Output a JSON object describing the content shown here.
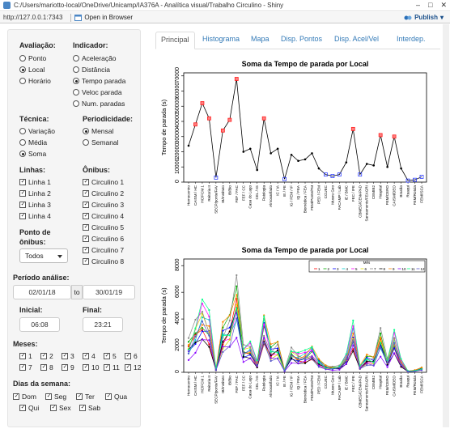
{
  "window": {
    "title": "C:/Users/mariotto-local/OneDrive/Unicamp/IA376A - Analítica visual/Trabalho Circulino - Shiny",
    "controls": [
      "–",
      "□",
      "✕"
    ]
  },
  "toolbar": {
    "url": "http://127.0.0.1:7343",
    "open_label": "Open in Browser",
    "publish_label": "Publish"
  },
  "sidebar": {
    "avaliacao": {
      "label": "Avaliação:",
      "options": [
        "Ponto",
        "Local",
        "Horário"
      ],
      "selected": 1
    },
    "indicador": {
      "label": "Indicador:",
      "options": [
        "Aceleração",
        "Distância",
        "Tempo parada",
        "Veloc parada",
        "Num. paradas"
      ],
      "selected": 2
    },
    "tecnica": {
      "label": "Técnica:",
      "options": [
        "Variação",
        "Média",
        "Soma"
      ],
      "selected": 2
    },
    "periodicidade": {
      "label": "Periodicidade:",
      "options": [
        "Mensal",
        "Semanal"
      ],
      "selected": 0
    },
    "linhas": {
      "label": "Linhas:",
      "options": [
        "Linha 1",
        "Linha 2",
        "Linha 3",
        "Linha 4"
      ]
    },
    "onibus": {
      "label": "Ônibus:",
      "options": [
        "Circulino 1",
        "Circulino 2",
        "Circulino 3",
        "Circulino 4",
        "Circulino 5",
        "Circulino 6",
        "Circulino 7",
        "Circulino 8"
      ]
    },
    "ponto": {
      "label_line1": "Ponto de",
      "label_line2": "ônibus:",
      "value": "Todos"
    },
    "periodo": {
      "label": "Período análise:",
      "start": "02/01/18",
      "to": "to",
      "end": "30/01/19"
    },
    "inicial": {
      "label": "Inicial:",
      "value": "06:08"
    },
    "final": {
      "label": "Final:",
      "value": "23:21"
    },
    "meses": {
      "label": "Meses:",
      "options": [
        "1",
        "2",
        "3",
        "4",
        "5",
        "6",
        "7",
        "8",
        "9",
        "10",
        "11",
        "12"
      ]
    },
    "dias": {
      "label": "Dias da semana:",
      "options": [
        "Dom",
        "Seg",
        "Ter",
        "Qua",
        "Qui",
        "Sex",
        "Sab"
      ]
    }
  },
  "tabs": [
    "Principal",
    "Histograma",
    "Mapa",
    "Disp. Pontos",
    "Disp. Acel/Vel",
    "Interdep."
  ],
  "chart_data": [
    {
      "type": "line",
      "title": "Soma da Tempo de parada por Local",
      "ylabel": "Tempo de parada (s)",
      "xlabel": "",
      "ylim": [
        0,
        72000
      ],
      "yticks": [
        0,
        10000,
        20000,
        30000,
        40000,
        50000,
        60000,
        70000
      ],
      "categories": [
        "Hemocentro",
        "CAISM / HC",
        "HC/FCM 1",
        "Reitoria II",
        "SECP/ponte/FAV",
        "IB/Instituto",
        "IB/Bio",
        "FEF / FAC",
        "FEF / CC",
        "Casa do Lago",
        "CEL / IG",
        "Fisiologia",
        "Almoxarifado",
        "IC / IA",
        "IE / FE",
        "IG / FEM / IF",
        "IQ / FEA",
        "Biomédica / FEA",
        "FEM/Ponte/FM",
        "PED / FEM",
        "CCUEC",
        "Museu Geo",
        "FACAMP / Lab",
        "IE / BMC",
        "FEC / IFE",
        "CBMEG/CENAPAD",
        "Saneamento/FEAGRI",
        "CEMIB2",
        "Hospital",
        "FEM/CERO",
        "CAISM/DEO",
        "Brasão",
        "Ruaqui",
        "FEM/Rotula",
        "FEM/ISCA"
      ],
      "values": [
        24000,
        38000,
        52000,
        42000,
        3000,
        34000,
        41000,
        68000,
        20000,
        22000,
        8000,
        42000,
        19000,
        22000,
        2000,
        18000,
        14000,
        15000,
        19000,
        9000,
        5000,
        4000,
        5000,
        13000,
        35000,
        5000,
        12000,
        11000,
        31000,
        10000,
        30000,
        9000,
        1000,
        1500,
        3500
      ]
    },
    {
      "type": "line",
      "title": "Soma da Tempo de parada por Local",
      "ylabel": "Tempo de parada (s)",
      "xlabel": "",
      "ylim": [
        0,
        8500
      ],
      "yticks": [
        0,
        2000,
        4000,
        6000,
        8000
      ],
      "legend_title": "Mês",
      "legend_position": "top-right",
      "months": [
        "1",
        "2",
        "3",
        "4",
        "5",
        "6",
        "7",
        "8",
        "9",
        "10",
        "11",
        "12"
      ],
      "colors": [
        "#ff0000",
        "#00aa00",
        "#0000ff",
        "#00cccc",
        "#ff00ff",
        "#dddd00",
        "#888888",
        "#000000",
        "#ff8800",
        "#8800ff",
        "#00ff88",
        "#5555cc"
      ]
    }
  ]
}
